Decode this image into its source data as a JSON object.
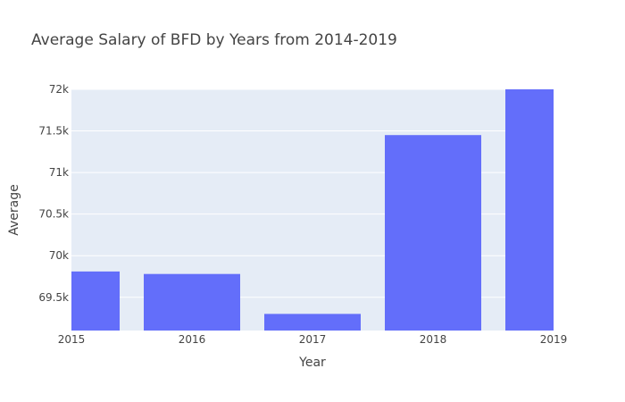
{
  "chart_data": {
    "type": "bar",
    "title": "Average Salary of BFD by Years from 2014-2019",
    "xlabel": "Year",
    "ylabel": "Average",
    "categories": [
      "2015",
      "2016",
      "2017",
      "2018",
      "2019"
    ],
    "values": [
      69810,
      69780,
      69300,
      71450,
      72000
    ],
    "ylim": [
      69100,
      72000
    ],
    "yticks": [
      69500,
      70000,
      70500,
      71000,
      71500,
      72000
    ],
    "ytick_labels": [
      "69.5k",
      "70k",
      "70.5k",
      "71k",
      "71.5k",
      "72k"
    ],
    "xlim": [
      2015,
      2019
    ],
    "grid": true,
    "colors": {
      "bar": "#636efa",
      "plot_bg": "#e5ecf6",
      "grid": "#ffffff"
    }
  }
}
